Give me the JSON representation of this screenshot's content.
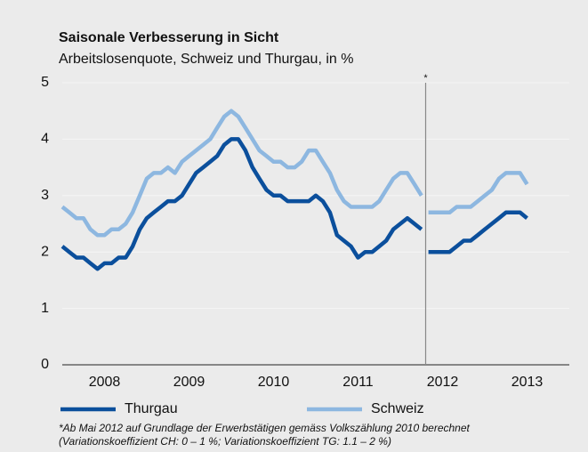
{
  "chart_data": {
    "type": "line",
    "title": "Saisonale Verbesserung in Sicht",
    "subtitle": "Arbeitslosenquote, Schweiz und Thurgau, in %",
    "x": [
      2008,
      2008.083,
      2008.167,
      2008.25,
      2008.333,
      2008.417,
      2008.5,
      2008.583,
      2008.667,
      2008.75,
      2008.833,
      2008.917,
      2009,
      2009.083,
      2009.167,
      2009.25,
      2009.333,
      2009.417,
      2009.5,
      2009.583,
      2009.667,
      2009.75,
      2009.833,
      2009.917,
      2010,
      2010.083,
      2010.167,
      2010.25,
      2010.333,
      2010.417,
      2010.5,
      2010.583,
      2010.667,
      2010.75,
      2010.833,
      2010.917,
      2011,
      2011.083,
      2011.167,
      2011.25,
      2011.333,
      2011.417,
      2011.5,
      2011.583,
      2011.667,
      2011.75,
      2011.833,
      2011.917,
      2012,
      2012.083,
      2012.167,
      2012.25,
      2012.333,
      2012.417,
      2012.5,
      2012.583,
      2012.667,
      2012.75,
      2012.833,
      2012.917,
      2013,
      2013.083,
      2013.167,
      2013.25,
      2013.333,
      2013.417,
      2013.5
    ],
    "series": [
      {
        "name": "Thurgau",
        "color": "#0b4f9c",
        "values": [
          2.1,
          2.0,
          1.9,
          1.9,
          1.8,
          1.7,
          1.8,
          1.8,
          1.9,
          1.9,
          2.1,
          2.4,
          2.6,
          2.7,
          2.8,
          2.9,
          2.9,
          3.0,
          3.2,
          3.4,
          3.5,
          3.6,
          3.7,
          3.9,
          4.0,
          4.0,
          3.8,
          3.5,
          3.3,
          3.1,
          3.0,
          3.0,
          2.9,
          2.9,
          2.9,
          2.9,
          3.0,
          2.9,
          2.7,
          2.3,
          2.2,
          2.1,
          1.9,
          2.0,
          2.0,
          2.1,
          2.2,
          2.4,
          2.5,
          2.6,
          2.5,
          2.4,
          2.0,
          2.0,
          2.0,
          2.0,
          2.1,
          2.2,
          2.2,
          2.3,
          2.4,
          2.5,
          2.6,
          2.7,
          2.7,
          2.7,
          2.6
        ]
      },
      {
        "name": "Schweiz",
        "color": "#8db7e0",
        "values": [
          2.8,
          2.7,
          2.6,
          2.6,
          2.4,
          2.3,
          2.3,
          2.4,
          2.4,
          2.5,
          2.7,
          3.0,
          3.3,
          3.4,
          3.4,
          3.5,
          3.4,
          3.6,
          3.7,
          3.8,
          3.9,
          4.0,
          4.2,
          4.4,
          4.5,
          4.4,
          4.2,
          4.0,
          3.8,
          3.7,
          3.6,
          3.6,
          3.5,
          3.5,
          3.6,
          3.8,
          3.8,
          3.6,
          3.4,
          3.1,
          2.9,
          2.8,
          2.8,
          2.8,
          2.8,
          2.9,
          3.1,
          3.3,
          3.4,
          3.4,
          3.2,
          3.0,
          2.7,
          2.7,
          2.7,
          2.7,
          2.8,
          2.8,
          2.8,
          2.9,
          3.0,
          3.1,
          3.3,
          3.4,
          3.4,
          3.4,
          3.2
        ]
      }
    ],
    "xlim": [
      2008,
      2014
    ],
    "xticks": [
      {
        "value": 2008.5,
        "label": "2008"
      },
      {
        "value": 2009.5,
        "label": "2009"
      },
      {
        "value": 2010.5,
        "label": "2010"
      },
      {
        "value": 2011.5,
        "label": "2011"
      },
      {
        "value": 2012.5,
        "label": "2012"
      },
      {
        "value": 2013.5,
        "label": "2013"
      }
    ],
    "ylim": [
      0,
      5
    ],
    "yticks": [
      0,
      1,
      2,
      3,
      4,
      5
    ],
    "annotations": [
      {
        "x": 2012.3,
        "label": "*"
      }
    ],
    "note": "*Ab Mai 2012 auf Grundlage der Erwerbstätigen gemäss Volkszählung 2010 berechnet (Variationskoeffizient CH: 0 – 1 %; Variationskoeffizient TG: 1.1 – 2 %)"
  }
}
